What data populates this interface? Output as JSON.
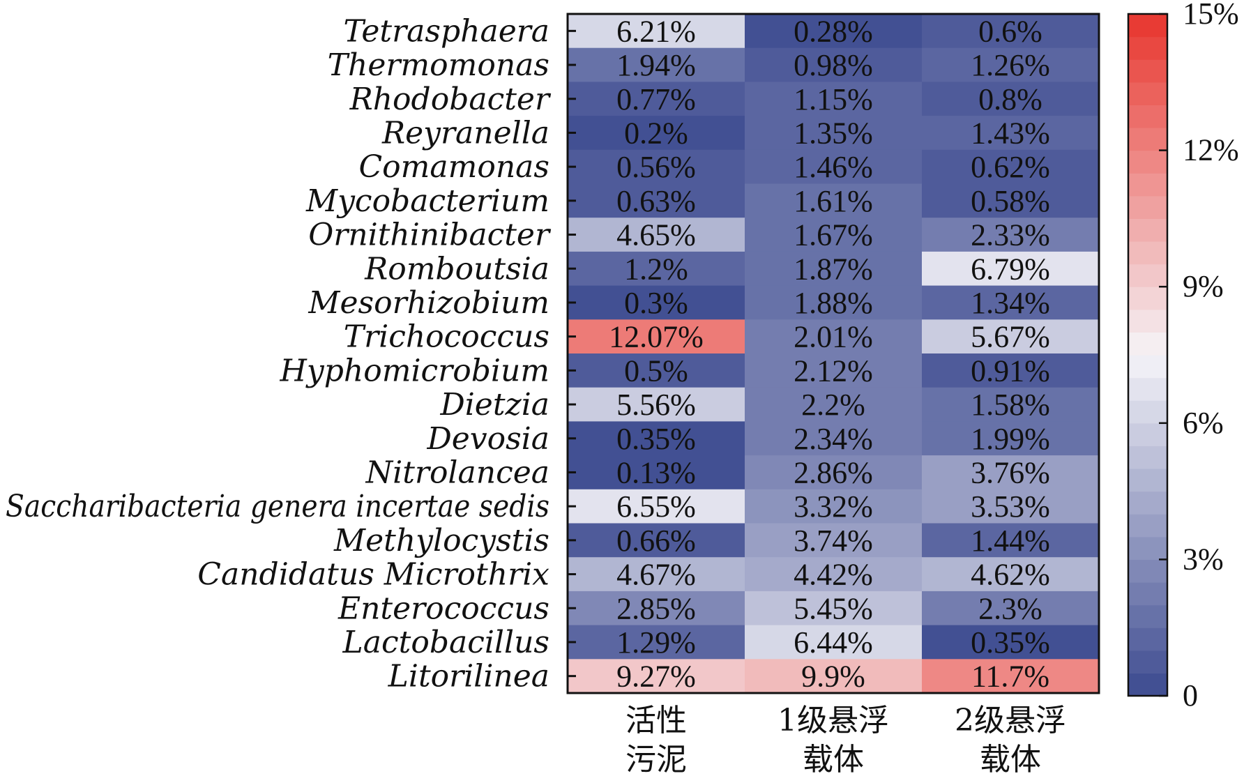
{
  "chart_data": {
    "type": "heatmap",
    "rows": [
      "Tetrasphaera",
      "Thermomonas",
      "Rhodobacter",
      "Reyranella",
      "Comamonas",
      "Mycobacterium",
      "Ornithinibacter",
      "Romboutsia",
      "Mesorhizobium",
      "Trichococcus",
      "Hyphomicrobium",
      "Dietzia",
      "Devosia",
      "Nitrolancea",
      "Saccharibacteria genera incertae sedis",
      "Methylocystis",
      "Candidatus Microthrix",
      "Enterococcus",
      "Lactobacillus",
      "Litorilinea"
    ],
    "columns": [
      [
        "活性",
        "污泥"
      ],
      [
        "1级悬浮",
        "载体"
      ],
      [
        "2级悬浮",
        "载体"
      ]
    ],
    "values": [
      [
        6.21,
        0.28,
        0.6
      ],
      [
        1.94,
        0.98,
        1.26
      ],
      [
        0.77,
        1.15,
        0.8
      ],
      [
        0.2,
        1.35,
        1.43
      ],
      [
        0.56,
        1.46,
        0.62
      ],
      [
        0.63,
        1.61,
        0.58
      ],
      [
        4.65,
        1.67,
        2.33
      ],
      [
        1.2,
        1.87,
        6.79
      ],
      [
        0.3,
        1.88,
        1.34
      ],
      [
        12.07,
        2.01,
        5.67
      ],
      [
        0.5,
        2.12,
        0.91
      ],
      [
        5.56,
        2.2,
        1.58
      ],
      [
        0.35,
        2.34,
        1.99
      ],
      [
        0.13,
        2.86,
        3.76
      ],
      [
        6.55,
        3.32,
        3.53
      ],
      [
        0.66,
        3.74,
        1.44
      ],
      [
        4.67,
        4.42,
        4.62
      ],
      [
        2.85,
        5.45,
        2.3
      ],
      [
        1.29,
        6.44,
        0.35
      ],
      [
        9.27,
        9.9,
        11.7
      ]
    ],
    "labels": [
      [
        "6.21%",
        "0.28%",
        "0.6%"
      ],
      [
        "1.94%",
        "0.98%",
        "1.26%"
      ],
      [
        "0.77%",
        "1.15%",
        "0.8%"
      ],
      [
        "0.2%",
        "1.35%",
        "1.43%"
      ],
      [
        "0.56%",
        "1.46%",
        "0.62%"
      ],
      [
        "0.63%",
        "1.61%",
        "0.58%"
      ],
      [
        "4.65%",
        "1.67%",
        "2.33%"
      ],
      [
        "1.2%",
        "1.87%",
        "6.79%"
      ],
      [
        "0.3%",
        "1.88%",
        "1.34%"
      ],
      [
        "12.07%",
        "2.01%",
        "5.67%"
      ],
      [
        "0.5%",
        "2.12%",
        "0.91%"
      ],
      [
        "5.56%",
        "2.2%",
        "1.58%"
      ],
      [
        "0.35%",
        "2.34%",
        "1.99%"
      ],
      [
        "0.13%",
        "2.86%",
        "3.76%"
      ],
      [
        "6.55%",
        "3.32%",
        "3.53%"
      ],
      [
        "0.66%",
        "3.74%",
        "1.44%"
      ],
      [
        "4.67%",
        "4.42%",
        "4.62%"
      ],
      [
        "2.85%",
        "5.45%",
        "2.3%"
      ],
      [
        "1.29%",
        "6.44%",
        "0.35%"
      ],
      [
        "9.27%",
        "9.9%",
        "11.7%"
      ]
    ],
    "colorbar": {
      "range": [
        0,
        15
      ],
      "ticks": [
        0,
        3,
        6,
        9,
        12,
        15
      ],
      "tick_labels": [
        "0",
        "3%",
        "6%",
        "9%",
        "12%",
        "15%"
      ],
      "color_low": "#3c4a8f",
      "color_mid": "#f5f4f8",
      "color_high": "#e8352d",
      "mid_value": 7.5,
      "steps": 30
    },
    "title": "",
    "xlabel": "",
    "ylabel": ""
  }
}
